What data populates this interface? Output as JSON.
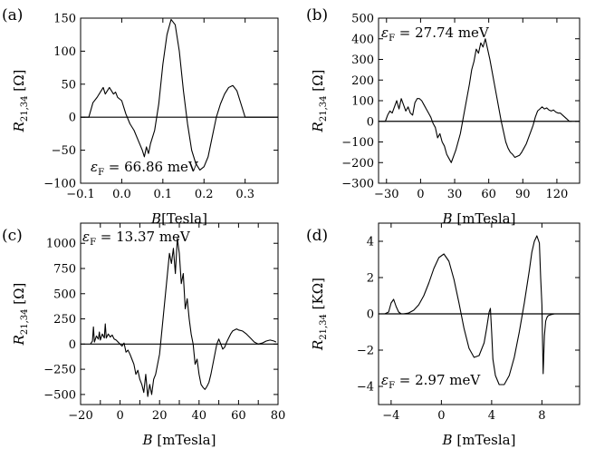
{
  "chart_data": [
    {
      "type": "line",
      "panel_label": "(a)",
      "ylabel": "R_{21,34} [Ω]",
      "ylabel_parts": {
        "sym": "R",
        "sub": "21,34",
        "unit": "[Ω]"
      },
      "xlabel": "B[Tesla]",
      "xlabel_parts": {
        "sym": "B",
        "unit": "[Tesla]"
      },
      "xlim": [
        -0.1,
        0.38
      ],
      "ylim": [
        -100,
        150
      ],
      "xticks": [
        -0.1,
        0.0,
        0.1,
        0.2,
        0.3
      ],
      "xtick_labels": [
        "−0.1",
        "0.0",
        "0.1",
        "0.2",
        "0.3"
      ],
      "yticks": [
        -100,
        -50,
        0,
        50,
        100,
        150
      ],
      "ytick_labels": [
        "−100",
        "−50",
        "0",
        "50",
        "100",
        "150"
      ],
      "annotation": "εF = 66.86 meV",
      "annotation_parts": {
        "sym": "ε",
        "sub": "F",
        "value": "= 66.86 meV"
      },
      "annotation_position": "bottom-left",
      "zero_line": true,
      "grid": false,
      "series": [
        {
          "x": [
            -0.1,
            -0.08,
            -0.07,
            -0.06,
            -0.05,
            -0.045,
            -0.04,
            -0.03,
            -0.025,
            -0.02,
            -0.015,
            -0.01,
            0.0,
            0.005,
            0.01,
            0.02,
            0.03,
            0.04,
            0.05,
            0.055,
            0.06,
            0.065,
            0.07,
            0.08,
            0.09,
            0.1,
            0.11,
            0.12,
            0.13,
            0.14,
            0.15,
            0.16,
            0.17,
            0.18,
            0.19,
            0.2,
            0.21,
            0.22,
            0.23,
            0.24,
            0.25,
            0.26,
            0.27,
            0.28,
            0.29,
            0.3,
            0.31,
            0.32,
            0.33,
            0.34,
            0.35,
            0.37
          ],
          "y": [
            0,
            0,
            22,
            30,
            40,
            45,
            35,
            45,
            40,
            35,
            38,
            30,
            25,
            15,
            5,
            -10,
            -20,
            -35,
            -50,
            -60,
            -45,
            -55,
            -40,
            -20,
            20,
            80,
            125,
            148,
            140,
            100,
            40,
            -10,
            -50,
            -70,
            -80,
            -75,
            -60,
            -30,
            0,
            20,
            35,
            45,
            48,
            40,
            20,
            0,
            0,
            0,
            0,
            0,
            0,
            0
          ]
        }
      ]
    },
    {
      "type": "line",
      "panel_label": "(b)",
      "ylabel": "R_{21,34} [Ω]",
      "ylabel_parts": {
        "sym": "R",
        "sub": "21,34",
        "unit": "[Ω]"
      },
      "xlabel": "B [mTesla]",
      "xlabel_parts": {
        "sym": "B",
        "unit": "[mTesla]"
      },
      "xlim": [
        -37,
        140
      ],
      "ylim": [
        -300,
        500
      ],
      "xticks": [
        -30,
        0,
        30,
        60,
        90,
        120
      ],
      "xtick_labels": [
        "−30",
        "0",
        "30",
        "60",
        "90",
        "120"
      ],
      "yticks": [
        -300,
        -200,
        -100,
        0,
        100,
        200,
        300,
        400,
        500
      ],
      "ytick_labels": [
        "−300",
        "−200",
        "−100",
        "0",
        "100",
        "200",
        "300",
        "400",
        "500"
      ],
      "annotation": "εF = 27.74 meV",
      "annotation_parts": {
        "sym": "ε",
        "sub": "F",
        "value": "= 27.74 meV"
      },
      "annotation_position": "top-left",
      "zero_line": true,
      "grid": false,
      "series": [
        {
          "x": [
            -33,
            -31,
            -29,
            -27,
            -25,
            -23,
            -21,
            -19,
            -17,
            -15,
            -13,
            -11,
            -9,
            -7,
            -5,
            -3,
            -1,
            1,
            3,
            5,
            7,
            9,
            11,
            13,
            15,
            17,
            19,
            21,
            23,
            25,
            27,
            29,
            31,
            33,
            35,
            37,
            39,
            41,
            43,
            45,
            47,
            49,
            51,
            53,
            55,
            57,
            59,
            61,
            63,
            65,
            67,
            69,
            71,
            73,
            75,
            77,
            79,
            81,
            83,
            85,
            87,
            89,
            91,
            93,
            95,
            97,
            99,
            101,
            103,
            105,
            107,
            109,
            111,
            113,
            115,
            117,
            119,
            121,
            123,
            125,
            127,
            129,
            131,
            133
          ],
          "y": [
            0,
            0,
            30,
            50,
            40,
            70,
            100,
            60,
            110,
            80,
            50,
            70,
            40,
            30,
            90,
            110,
            110,
            100,
            80,
            60,
            40,
            20,
            -10,
            -30,
            -80,
            -60,
            -100,
            -120,
            -160,
            -180,
            -200,
            -170,
            -140,
            -100,
            -60,
            0,
            60,
            120,
            180,
            250,
            290,
            350,
            330,
            380,
            360,
            400,
            350,
            300,
            240,
            180,
            120,
            60,
            0,
            -50,
            -100,
            -130,
            -150,
            -160,
            -175,
            -170,
            -165,
            -150,
            -130,
            -110,
            -80,
            -50,
            -20,
            20,
            50,
            60,
            70,
            60,
            65,
            55,
            50,
            55,
            45,
            40,
            40,
            30,
            20,
            10,
            0,
            0
          ]
        }
      ]
    },
    {
      "type": "line",
      "panel_label": "(c)",
      "ylabel": "R_{21,34} [Ω]",
      "ylabel_parts": {
        "sym": "R",
        "sub": "21,34",
        "unit": "[Ω]"
      },
      "xlabel": "B [mTesla]",
      "xlabel_parts": {
        "sym": "B",
        "unit": "[mTesla]"
      },
      "xlim": [
        -20,
        80
      ],
      "ylim": [
        -600,
        1200
      ],
      "xticks": [
        -20,
        -10,
        0,
        10,
        20,
        30,
        40,
        50,
        60,
        70,
        80
      ],
      "xtick_labels": [
        "−20",
        "",
        "0",
        "",
        "20",
        "",
        "40",
        "",
        "60",
        "",
        "80"
      ],
      "yticks": [
        -500,
        -250,
        0,
        250,
        500,
        750,
        1000
      ],
      "ytick_labels": [
        "−500",
        "−250",
        "0",
        "250",
        "500",
        "750",
        "1000"
      ],
      "annotation": "εF = 13.37 meV",
      "annotation_parts": {
        "sym": "ε",
        "sub": "F",
        "value": "= 13.37 meV"
      },
      "annotation_position": "top-left",
      "zero_line": true,
      "grid": false,
      "series": [
        {
          "x": [
            -15,
            -14,
            -13.5,
            -13,
            -12,
            -11,
            -10.5,
            -10,
            -9,
            -8,
            -7.5,
            -7,
            -6,
            -5,
            -4,
            -3,
            -2,
            -1,
            0,
            1,
            2,
            3,
            4,
            5,
            6,
            7,
            8,
            9,
            10,
            11,
            12,
            13,
            14,
            15,
            16,
            17,
            18,
            19,
            20,
            21,
            22,
            23,
            24,
            25,
            26,
            27,
            28,
            29,
            30,
            31,
            32,
            33,
            34,
            35,
            36,
            37,
            38,
            39,
            40,
            41,
            42,
            43,
            44,
            45,
            46,
            47,
            48,
            49,
            50,
            51,
            52,
            53,
            54,
            55,
            56,
            57,
            58,
            59,
            60,
            62,
            64,
            66,
            68,
            70,
            72,
            74,
            76,
            78,
            79
          ],
          "y": [
            0,
            30,
            170,
            20,
            80,
            50,
            120,
            40,
            100,
            60,
            200,
            60,
            100,
            70,
            90,
            50,
            40,
            20,
            0,
            -20,
            10,
            -80,
            -60,
            -100,
            -150,
            -200,
            -300,
            -260,
            -350,
            -400,
            -480,
            -300,
            -520,
            -400,
            -500,
            -350,
            -300,
            -200,
            -100,
            100,
            300,
            500,
            700,
            900,
            800,
            950,
            700,
            1050,
            900,
            600,
            700,
            350,
            450,
            250,
            100,
            0,
            -200,
            -150,
            -300,
            -400,
            -430,
            -450,
            -420,
            -380,
            -300,
            -200,
            -100,
            0,
            50,
            0,
            -50,
            -30,
            20,
            60,
            100,
            130,
            140,
            150,
            140,
            130,
            100,
            60,
            20,
            0,
            10,
            30,
            40,
            30,
            20
          ]
        }
      ]
    },
    {
      "type": "line",
      "panel_label": "(d)",
      "ylabel": "R_{21,34} [KΩ]",
      "ylabel_parts": {
        "sym": "R",
        "sub": "21,34",
        "unit": "[KΩ]"
      },
      "xlabel": "B [mTesla]",
      "xlabel_parts": {
        "sym": "B",
        "unit": "[mTesla]"
      },
      "xlim": [
        -5,
        11
      ],
      "ylim": [
        -5,
        5
      ],
      "xticks": [
        -4,
        0,
        4,
        8
      ],
      "xtick_labels": [
        "−4",
        "0",
        "4",
        "8"
      ],
      "yticks": [
        -4,
        -2,
        0,
        2,
        4
      ],
      "ytick_labels": [
        "−4",
        "−2",
        "0",
        "2",
        "4"
      ],
      "annotation": "εF = 2.97 meV",
      "annotation_parts": {
        "sym": "ε",
        "sub": "F",
        "value": "= 2.97 meV"
      },
      "annotation_position": "bottom-left",
      "zero_line": true,
      "grid": false,
      "series": [
        {
          "x": [
            -4.5,
            -4.2,
            -4.0,
            -3.8,
            -3.6,
            -3.4,
            -3.2,
            -3.0,
            -2.6,
            -2.2,
            -1.8,
            -1.4,
            -1.0,
            -0.6,
            -0.2,
            0.2,
            0.6,
            1.0,
            1.4,
            1.8,
            2.2,
            2.6,
            3.0,
            3.4,
            3.6,
            3.8,
            3.9,
            4.0,
            4.1,
            4.3,
            4.6,
            5.0,
            5.4,
            5.8,
            6.2,
            6.6,
            7.0,
            7.2,
            7.4,
            7.6,
            7.8,
            7.9,
            8.0,
            8.05,
            8.1,
            8.2,
            8.3,
            8.4,
            8.5,
            8.7,
            9.0,
            9.5,
            10.0,
            10.5,
            11.0
          ],
          "y": [
            0,
            0.1,
            0.6,
            0.8,
            0.4,
            0.1,
            0,
            0,
            0.05,
            0.2,
            0.5,
            1.0,
            1.7,
            2.5,
            3.1,
            3.3,
            2.9,
            1.9,
            0.6,
            -0.8,
            -1.9,
            -2.4,
            -2.3,
            -1.6,
            -0.8,
            0.1,
            0.3,
            -1.0,
            -2.5,
            -3.4,
            -3.9,
            -3.9,
            -3.4,
            -2.4,
            -1.0,
            0.6,
            2.4,
            3.4,
            4.0,
            4.3,
            3.9,
            2.0,
            0.5,
            -1.5,
            -3.3,
            -1.2,
            -0.4,
            -0.2,
            -0.1,
            -0.05,
            0,
            0,
            0,
            0,
            0
          ]
        }
      ]
    }
  ]
}
